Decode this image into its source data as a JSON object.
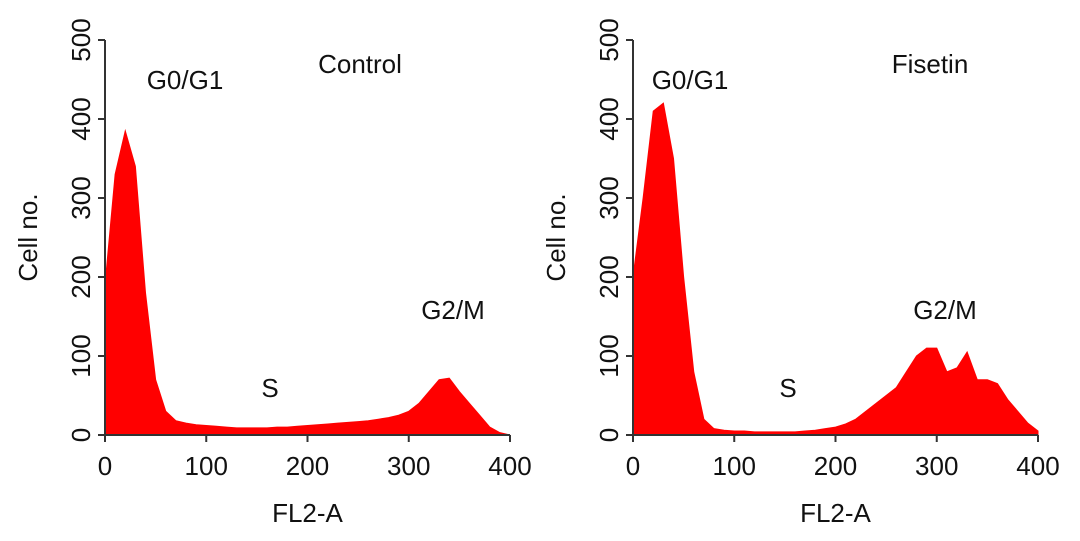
{
  "chart_data": [
    {
      "type": "area",
      "label": "Control",
      "annotations": [
        "G0/G1",
        "S",
        "G2/M"
      ],
      "xlabel": "FL2-A",
      "ylabel": "Cell no.",
      "color": "#ff0000",
      "xlim": [
        0,
        400
      ],
      "ylim": [
        0,
        500
      ],
      "xticks": [
        0,
        100,
        200,
        300,
        400
      ],
      "yticks": [
        0,
        100,
        200,
        300,
        400,
        500
      ],
      "x": [
        0,
        10,
        20,
        30,
        40,
        50,
        60,
        70,
        80,
        90,
        100,
        110,
        120,
        130,
        140,
        150,
        160,
        170,
        180,
        190,
        200,
        210,
        220,
        230,
        240,
        250,
        260,
        270,
        280,
        290,
        300,
        310,
        320,
        330,
        340,
        350,
        360,
        370,
        380,
        390,
        400
      ],
      "values": [
        190,
        330,
        385,
        340,
        180,
        70,
        30,
        18,
        15,
        13,
        12,
        11,
        10,
        9,
        9,
        9,
        9,
        10,
        10,
        11,
        12,
        13,
        14,
        15,
        16,
        17,
        18,
        20,
        22,
        25,
        30,
        40,
        55,
        70,
        72,
        55,
        40,
        25,
        10,
        3,
        0
      ]
    },
    {
      "type": "area",
      "label": "Fisetin",
      "annotations": [
        "G0/G1",
        "S",
        "G2/M"
      ],
      "xlabel": "FL2-A",
      "ylabel": "Cell no.",
      "color": "#ff0000",
      "xlim": [
        0,
        400
      ],
      "ylim": [
        0,
        500
      ],
      "xticks": [
        0,
        100,
        200,
        300,
        400
      ],
      "yticks": [
        0,
        100,
        200,
        300,
        400,
        500
      ],
      "x": [
        0,
        10,
        20,
        30,
        40,
        50,
        60,
        70,
        80,
        90,
        100,
        110,
        120,
        130,
        140,
        150,
        160,
        170,
        180,
        190,
        200,
        210,
        220,
        230,
        240,
        250,
        260,
        270,
        280,
        290,
        300,
        310,
        320,
        330,
        340,
        350,
        360,
        370,
        380,
        390,
        400
      ],
      "values": [
        200,
        300,
        410,
        420,
        350,
        200,
        80,
        20,
        8,
        6,
        5,
        5,
        4,
        4,
        4,
        4,
        4,
        5,
        6,
        8,
        10,
        14,
        20,
        30,
        40,
        50,
        60,
        80,
        100,
        110,
        110,
        80,
        85,
        105,
        70,
        70,
        65,
        45,
        30,
        15,
        5
      ]
    }
  ]
}
